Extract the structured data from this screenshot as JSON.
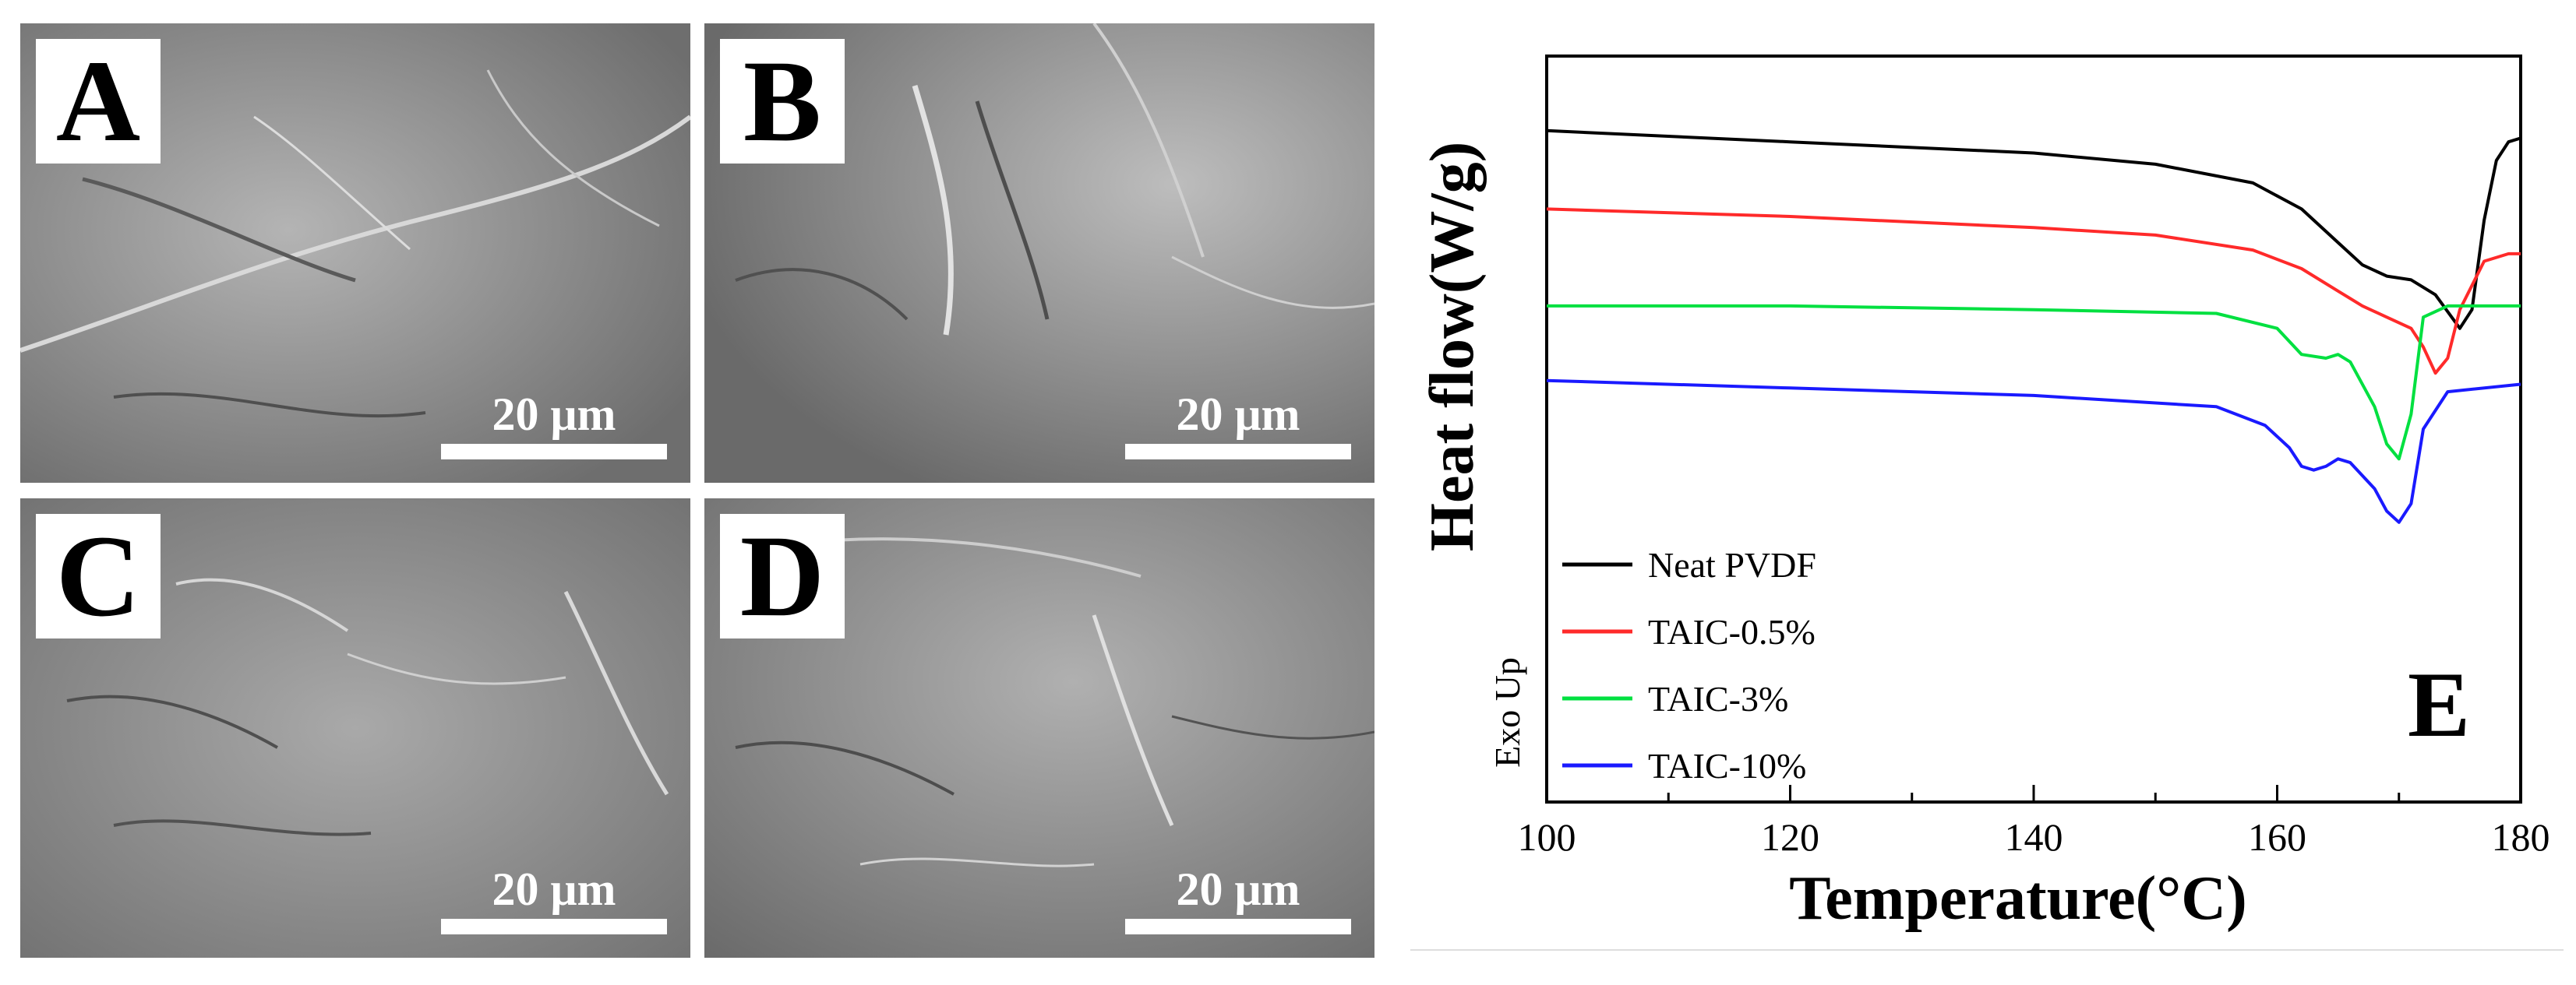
{
  "panels": [
    {
      "letter": "A",
      "scale_bar": "20 μm"
    },
    {
      "letter": "B",
      "scale_bar": "20 μm"
    },
    {
      "letter": "C",
      "scale_bar": "20 μm"
    },
    {
      "letter": "D",
      "scale_bar": "20 μm"
    }
  ],
  "colors": {
    "sem_background": "#8f8f8f",
    "neat_pvdf": "#000000",
    "taic_0_5": "#ff2a2a",
    "taic_3": "#00e040",
    "taic_10": "#1a1aff"
  },
  "chart_data": {
    "type": "line",
    "panel_label": "E",
    "xlabel": "Temperature(°C)",
    "ylabel": "Heat flow(W/g)",
    "y_annotation": "Exo Up",
    "xlim": [
      100,
      180
    ],
    "x_ticks": [
      100,
      120,
      140,
      160,
      180
    ],
    "y_tick_labels_shown": false,
    "ylim": [
      0,
      10
    ],
    "grid": false,
    "legend_position": "bottom-left",
    "series": [
      {
        "name": "Neat PVDF",
        "color": "#000000",
        "points": [
          [
            100,
            9.0
          ],
          [
            120,
            8.85
          ],
          [
            140,
            8.7
          ],
          [
            150,
            8.55
          ],
          [
            158,
            8.3
          ],
          [
            162,
            7.95
          ],
          [
            165,
            7.5
          ],
          [
            167,
            7.2
          ],
          [
            169,
            7.05
          ],
          [
            171,
            7.0
          ],
          [
            173,
            6.8
          ],
          [
            175,
            6.35
          ],
          [
            176,
            6.6
          ],
          [
            177,
            7.8
          ],
          [
            178,
            8.6
          ],
          [
            179,
            8.85
          ],
          [
            180,
            8.9
          ]
        ]
      },
      {
        "name": "TAIC-0.5%",
        "color": "#ff2a2a",
        "points": [
          [
            100,
            7.95
          ],
          [
            120,
            7.85
          ],
          [
            140,
            7.7
          ],
          [
            150,
            7.6
          ],
          [
            158,
            7.4
          ],
          [
            162,
            7.15
          ],
          [
            165,
            6.85
          ],
          [
            167,
            6.65
          ],
          [
            169,
            6.5
          ],
          [
            171,
            6.35
          ],
          [
            172,
            6.1
          ],
          [
            173,
            5.75
          ],
          [
            174,
            5.95
          ],
          [
            175,
            6.6
          ],
          [
            177,
            7.25
          ],
          [
            179,
            7.35
          ],
          [
            180,
            7.35
          ]
        ]
      },
      {
        "name": "TAIC-3%",
        "color": "#00e040",
        "points": [
          [
            100,
            6.65
          ],
          [
            120,
            6.65
          ],
          [
            140,
            6.6
          ],
          [
            155,
            6.55
          ],
          [
            160,
            6.35
          ],
          [
            162,
            6.0
          ],
          [
            164,
            5.95
          ],
          [
            165,
            6.0
          ],
          [
            166,
            5.9
          ],
          [
            168,
            5.3
          ],
          [
            169,
            4.8
          ],
          [
            170,
            4.6
          ],
          [
            171,
            5.2
          ],
          [
            172,
            6.5
          ],
          [
            174,
            6.65
          ],
          [
            180,
            6.65
          ]
        ]
      },
      {
        "name": "TAIC-10%",
        "color": "#1a1aff",
        "points": [
          [
            100,
            5.65
          ],
          [
            120,
            5.55
          ],
          [
            140,
            5.45
          ],
          [
            155,
            5.3
          ],
          [
            159,
            5.05
          ],
          [
            161,
            4.75
          ],
          [
            162,
            4.5
          ],
          [
            163,
            4.45
          ],
          [
            164,
            4.5
          ],
          [
            165,
            4.6
          ],
          [
            166,
            4.55
          ],
          [
            168,
            4.2
          ],
          [
            169,
            3.9
          ],
          [
            170,
            3.75
          ],
          [
            171,
            4.0
          ],
          [
            172,
            5.0
          ],
          [
            174,
            5.5
          ],
          [
            180,
            5.6
          ]
        ]
      }
    ]
  }
}
